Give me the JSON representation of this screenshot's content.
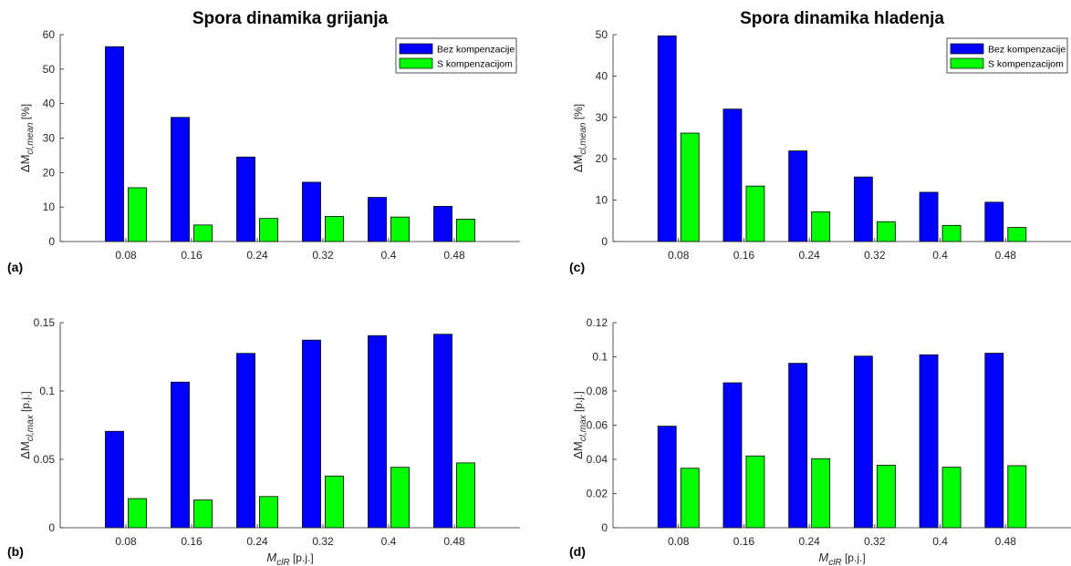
{
  "chart_data": [
    {
      "type": "bar",
      "panel_label": "(a)",
      "title": "Spora dinamika grijanja",
      "categories": [
        "0.08",
        "0.16",
        "0.24",
        "0.32",
        "0.4",
        "0.48"
      ],
      "series": [
        {
          "name": "Bez kompenzacije",
          "color": "#0000FF",
          "values": [
            56.5,
            36.0,
            24.5,
            17.2,
            12.8,
            10.2
          ]
        },
        {
          "name": "S kompenzacijom",
          "color": "#00FF00",
          "values": [
            15.6,
            4.8,
            6.7,
            7.3,
            7.1,
            6.5
          ]
        }
      ],
      "ylabel_base": "ΔM",
      "ylabel_sub": "cl,mean",
      "ylabel_unit": " [%]",
      "xlabel_base": "",
      "xlabel_sub": "",
      "xlabel_unit": "",
      "ylim": [
        0,
        60
      ],
      "yticks": [
        0,
        10,
        20,
        30,
        40,
        50,
        60
      ],
      "ytick_labels": [
        "0",
        "10",
        "20",
        "30",
        "40",
        "50",
        "60"
      ],
      "legend_position": "top-right",
      "show_legend": true
    },
    {
      "type": "bar",
      "panel_label": "(c)",
      "title": "Spora dinamika hladenja",
      "categories": [
        "0.08",
        "0.16",
        "0.24",
        "0.32",
        "0.4",
        "0.48"
      ],
      "series": [
        {
          "name": "Bez kompenzacije",
          "color": "#0000FF",
          "values": [
            49.7,
            32.0,
            21.9,
            15.6,
            11.9,
            9.5
          ]
        },
        {
          "name": "S kompenzacijom",
          "color": "#00FF00",
          "values": [
            26.2,
            13.4,
            7.2,
            4.8,
            3.9,
            3.4
          ]
        }
      ],
      "ylabel_base": "ΔM",
      "ylabel_sub": "cl,mean",
      "ylabel_unit": " [%]",
      "xlabel_base": "",
      "xlabel_sub": "",
      "xlabel_unit": "",
      "ylim": [
        0,
        50
      ],
      "yticks": [
        0,
        10,
        20,
        30,
        40,
        50
      ],
      "ytick_labels": [
        "0",
        "10",
        "20",
        "30",
        "40",
        "50"
      ],
      "legend_position": "top-right",
      "show_legend": true
    },
    {
      "type": "bar",
      "panel_label": "(b)",
      "title": "",
      "categories": [
        "0.08",
        "0.16",
        "0.24",
        "0.32",
        "0.4",
        "0.48"
      ],
      "series": [
        {
          "name": "Bez kompenzacije",
          "color": "#0000FF",
          "values": [
            0.0705,
            0.1065,
            0.1275,
            0.1372,
            0.1405,
            0.1415
          ]
        },
        {
          "name": "S kompenzacijom",
          "color": "#00FF00",
          "values": [
            0.0213,
            0.0203,
            0.0228,
            0.0378,
            0.0442,
            0.0474
          ]
        }
      ],
      "ylabel_base": "ΔM",
      "ylabel_sub": "cl,max",
      "ylabel_unit": " [p.j.]",
      "xlabel_base": "M",
      "xlabel_sub": "clR",
      "xlabel_unit": " [p.j.]",
      "ylim": [
        0,
        0.15
      ],
      "yticks": [
        0,
        0.05,
        0.1,
        0.15
      ],
      "ytick_labels": [
        "0",
        "0.05",
        "0.1",
        "0.15"
      ],
      "legend_position": "",
      "show_legend": false
    },
    {
      "type": "bar",
      "panel_label": "(d)",
      "title": "",
      "categories": [
        "0.08",
        "0.16",
        "0.24",
        "0.32",
        "0.4",
        "0.48"
      ],
      "series": [
        {
          "name": "Bez kompenzacije",
          "color": "#0000FF",
          "values": [
            0.0594,
            0.0848,
            0.0962,
            0.1004,
            0.1012,
            0.1021
          ]
        },
        {
          "name": "S kompenzacijom",
          "color": "#00FF00",
          "values": [
            0.0348,
            0.042,
            0.0404,
            0.0366,
            0.0354,
            0.0363
          ]
        }
      ],
      "ylabel_base": "ΔM",
      "ylabel_sub": "cl,max",
      "ylabel_unit": " [p.j.]",
      "xlabel_base": "M",
      "xlabel_sub": "clR",
      "xlabel_unit": " [p.j.]",
      "ylim": [
        0,
        0.12
      ],
      "yticks": [
        0,
        0.02,
        0.04,
        0.06,
        0.08,
        0.1,
        0.12
      ],
      "ytick_labels": [
        "0",
        "0.02",
        "0.04",
        "0.06",
        "0.08",
        "0.1",
        "0.12"
      ],
      "legend_position": "",
      "show_legend": false
    }
  ]
}
